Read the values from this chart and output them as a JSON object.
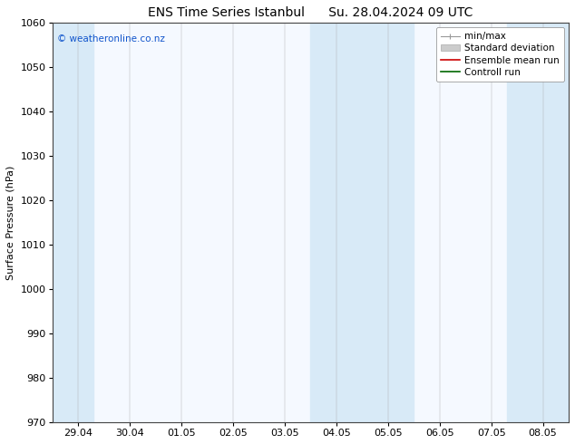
{
  "title_left": "ENS Time Series Istanbul",
  "title_right": "Su. 28.04.2024 09 UTC",
  "ylabel": "Surface Pressure (hPa)",
  "ylim": [
    970,
    1060
  ],
  "yticks": [
    970,
    980,
    990,
    1000,
    1010,
    1020,
    1030,
    1040,
    1050,
    1060
  ],
  "xtick_labels": [
    "29.04",
    "30.04",
    "01.05",
    "02.05",
    "03.05",
    "04.05",
    "05.05",
    "06.05",
    "07.05",
    "08.05"
  ],
  "watermark": "© weatheronline.co.nz",
  "shade_color": "#d8eaf7",
  "bg_color": "#ffffff",
  "plot_bg_color": "#f5f9ff",
  "title_fontsize": 10,
  "tick_fontsize": 8,
  "ylabel_fontsize": 8,
  "legend_fontsize": 7.5
}
